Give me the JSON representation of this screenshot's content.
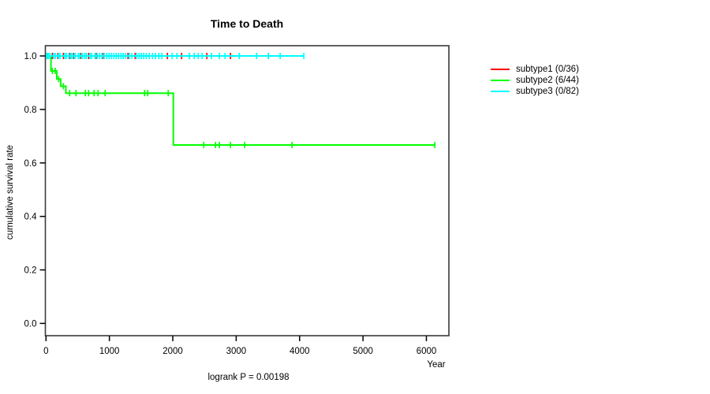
{
  "window": {
    "background": "#ffffff"
  },
  "chart_data": {
    "type": "line",
    "subtype": "kaplan-meier-step",
    "title": "Time to Death",
    "xlabel": "Year",
    "ylabel": "cumulative survival rate",
    "annotation": "logrank P = 0.00198",
    "xlim": [
      0,
      6200
    ],
    "ylim": [
      0,
      1
    ],
    "x_tick_labels": [
      "0",
      "1000",
      "2000",
      "3000",
      "4000",
      "5000",
      "6000"
    ],
    "y_tick_labels": [
      "0.0",
      "0.2",
      "0.4",
      "0.6",
      "0.8",
      "1.0"
    ],
    "grid": false,
    "legend_position": "right-outside",
    "axis_color": "#3a3a3a",
    "series": [
      {
        "name": "subtype1 (0/36)",
        "color": "#ff0000",
        "steps": [
          [
            0,
            1.0
          ],
          [
            2920,
            1.0
          ]
        ],
        "censors": [
          [
            100,
            1.0
          ],
          [
            187,
            1.0
          ],
          [
            274,
            1.0
          ],
          [
            373,
            1.0
          ],
          [
            435,
            1.0
          ],
          [
            547,
            1.0
          ],
          [
            672,
            1.0
          ],
          [
            796,
            1.0
          ],
          [
            896,
            1.0
          ],
          [
            1294,
            1.0
          ],
          [
            1406,
            1.0
          ],
          [
            1915,
            1.0
          ],
          [
            2139,
            1.0
          ],
          [
            2537,
            1.0
          ],
          [
            2910,
            1.0
          ]
        ]
      },
      {
        "name": "subtype2 (6/44)",
        "color": "#00ff00",
        "steps": [
          [
            0,
            1.0
          ],
          [
            78,
            0.944
          ],
          [
            170,
            0.914
          ],
          [
            232,
            0.887
          ],
          [
            314,
            0.861
          ],
          [
            2008,
            0.667
          ],
          [
            6132,
            0.667
          ]
        ],
        "censors": [
          [
            25,
            1.0
          ],
          [
            100,
            0.944
          ],
          [
            146,
            0.944
          ],
          [
            199,
            0.914
          ],
          [
            274,
            0.887
          ],
          [
            373,
            0.861
          ],
          [
            473,
            0.861
          ],
          [
            622,
            0.861
          ],
          [
            672,
            0.861
          ],
          [
            759,
            0.861
          ],
          [
            821,
            0.861
          ],
          [
            933,
            0.861
          ],
          [
            1555,
            0.861
          ],
          [
            1605,
            0.861
          ],
          [
            1928,
            0.861
          ],
          [
            2488,
            0.667
          ],
          [
            2674,
            0.667
          ],
          [
            2736,
            0.667
          ],
          [
            2910,
            0.667
          ],
          [
            3134,
            0.667
          ],
          [
            3881,
            0.667
          ],
          [
            6132,
            0.667
          ]
        ]
      },
      {
        "name": "subtype3 (0/82)",
        "color": "#00ffff",
        "steps": [
          [
            0,
            1.0
          ],
          [
            4067,
            1.0
          ]
        ],
        "censors": [
          [
            12,
            1.0
          ],
          [
            37,
            1.0
          ],
          [
            62,
            1.0
          ],
          [
            124,
            1.0
          ],
          [
            149,
            1.0
          ],
          [
            199,
            1.0
          ],
          [
            224,
            1.0
          ],
          [
            299,
            1.0
          ],
          [
            323,
            1.0
          ],
          [
            361,
            1.0
          ],
          [
            398,
            1.0
          ],
          [
            423,
            1.0
          ],
          [
            460,
            1.0
          ],
          [
            510,
            1.0
          ],
          [
            535,
            1.0
          ],
          [
            572,
            1.0
          ],
          [
            610,
            1.0
          ],
          [
            634,
            1.0
          ],
          [
            697,
            1.0
          ],
          [
            721,
            1.0
          ],
          [
            771,
            1.0
          ],
          [
            808,
            1.0
          ],
          [
            846,
            1.0
          ],
          [
            883,
            1.0
          ],
          [
            920,
            1.0
          ],
          [
            958,
            1.0
          ],
          [
            995,
            1.0
          ],
          [
            1032,
            1.0
          ],
          [
            1070,
            1.0
          ],
          [
            1107,
            1.0
          ],
          [
            1144,
            1.0
          ],
          [
            1182,
            1.0
          ],
          [
            1219,
            1.0
          ],
          [
            1256,
            1.0
          ],
          [
            1319,
            1.0
          ],
          [
            1356,
            1.0
          ],
          [
            1430,
            1.0
          ],
          [
            1468,
            1.0
          ],
          [
            1505,
            1.0
          ],
          [
            1542,
            1.0
          ],
          [
            1580,
            1.0
          ],
          [
            1629,
            1.0
          ],
          [
            1679,
            1.0
          ],
          [
            1729,
            1.0
          ],
          [
            1779,
            1.0
          ],
          [
            1828,
            1.0
          ],
          [
            1990,
            1.0
          ],
          [
            2065,
            1.0
          ],
          [
            2264,
            1.0
          ],
          [
            2338,
            1.0
          ],
          [
            2401,
            1.0
          ],
          [
            2463,
            1.0
          ],
          [
            2612,
            1.0
          ],
          [
            2736,
            1.0
          ],
          [
            2824,
            1.0
          ],
          [
            3047,
            1.0
          ],
          [
            3321,
            1.0
          ],
          [
            3507,
            1.0
          ],
          [
            3694,
            1.0
          ],
          [
            4067,
            1.0
          ]
        ]
      }
    ]
  }
}
